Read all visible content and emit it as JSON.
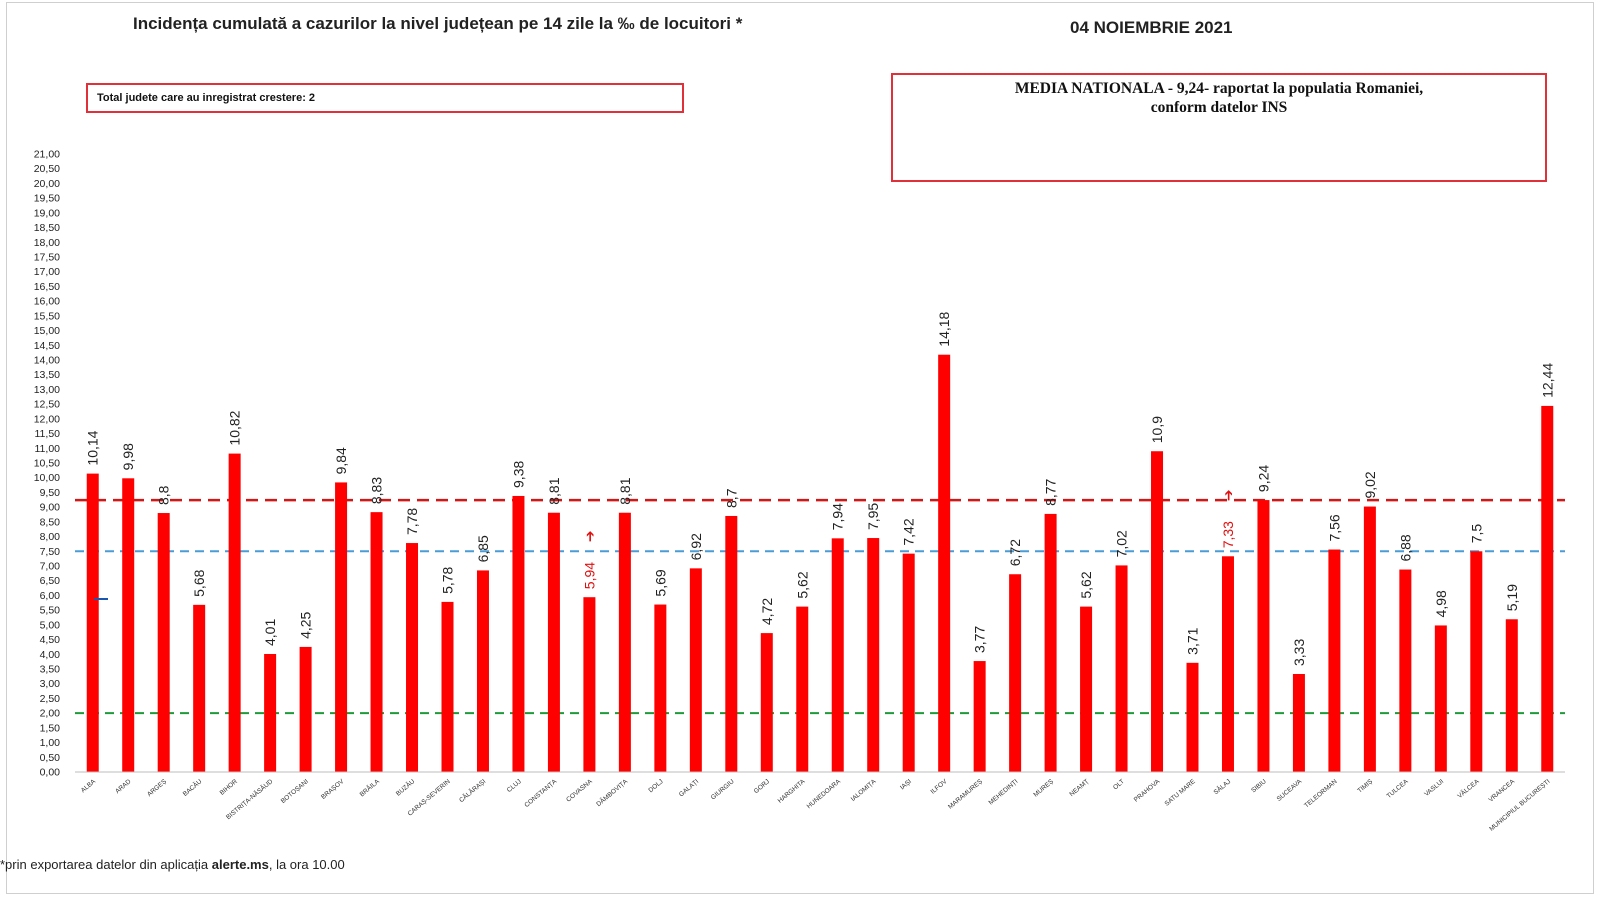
{
  "title": "Incidența cumulată a cazurilor la nivel județean pe 14 zile la ‰ de locuitori *",
  "date": "04 NOIEMBRIE 2021",
  "box_left_text": "Total judete care au inregistrat crestere: 2",
  "box_right_line1": "MEDIA NATIONALA - 9,24-  raportat la populatia Romaniei,",
  "box_right_line2": "conform datelor INS",
  "footnote_prefix": "*prin exportarea datelor din aplicația ",
  "footnote_bold": "alerte.ms",
  "footnote_suffix": ", la ora 10.00",
  "colors": {
    "bar": "#ff0000",
    "ref_red": "#d01818",
    "ref_blue": "#4a9cd6",
    "ref_green": "#1f9a3a",
    "increase_label": "#e01010"
  },
  "chart_data": {
    "type": "bar",
    "ylim": [
      0,
      21
    ],
    "ytick_step": 0.5,
    "decimal_separator": ",",
    "grid": false,
    "reference_lines": [
      {
        "value": 9.24,
        "color": "#d01818",
        "style": "dashed"
      },
      {
        "value": 7.5,
        "color": "#4a9cd6",
        "style": "dashed"
      },
      {
        "value": 2.0,
        "color": "#1f9a3a",
        "style": "dashed"
      }
    ],
    "categories": [
      "ALBA",
      "ARAD",
      "ARGEȘ",
      "BACĂU",
      "BIHOR",
      "BISTRIȚA-NĂSĂUD",
      "BOTOȘANI",
      "BRAȘOV",
      "BRĂILA",
      "BUZĂU",
      "CARAȘ-SEVERIN",
      "CĂLĂRAȘI",
      "CLUJ",
      "CONSTANȚA",
      "COVASNA",
      "DÂMBOVIȚA",
      "DOLJ",
      "GALAȚI",
      "GIURGIU",
      "GORJ",
      "HARGHITA",
      "HUNEDOARA",
      "IALOMIȚA",
      "IAȘI",
      "ILFOV",
      "MARAMUREȘ",
      "MEHEDINȚI",
      "MUREȘ",
      "NEAMȚ",
      "OLT",
      "PRAHOVA",
      "SATU MARE",
      "SĂLAJ",
      "SIBIU",
      "SUCEAVA",
      "TELEORMAN",
      "TIMIȘ",
      "TULCEA",
      "VASLUI",
      "VÂLCEA",
      "VRANCEA",
      "MUNICIPIUL BUCUREȘTI"
    ],
    "values": [
      10.14,
      9.98,
      8.8,
      5.68,
      10.82,
      4.01,
      4.25,
      9.84,
      8.83,
      7.78,
      5.78,
      6.85,
      9.38,
      8.81,
      5.94,
      8.81,
      5.69,
      6.92,
      8.7,
      4.72,
      5.62,
      7.94,
      7.95,
      7.42,
      14.18,
      3.77,
      6.72,
      8.77,
      5.62,
      7.02,
      10.9,
      3.71,
      7.33,
      9.24,
      3.33,
      7.56,
      9.02,
      6.88,
      4.98,
      7.5,
      5.19,
      12.44
    ],
    "labels": [
      "10,14",
      "9,98",
      "8,8",
      "5,68",
      "10,82",
      "4,01",
      "4,25",
      "9,84",
      "8,83",
      "7,78",
      "5,78",
      "6,85",
      "9,38",
      "8,81",
      "5,94",
      "8,81",
      "5,69",
      "6,92",
      "8,7",
      "4,72",
      "5,62",
      "7,94",
      "7,95",
      "7,42",
      "14,18",
      "3,77",
      "6,72",
      "8,77",
      "5,62",
      "7,02",
      "10,9",
      "3,71",
      "7,33",
      "9,24",
      "3,33",
      "7,56",
      "9,02",
      "6,88",
      "4,98",
      "7,5",
      "5,19",
      "12,44"
    ],
    "increased": [
      "COVASNA",
      "SĂLAJ"
    ],
    "increase_marker": "➔"
  }
}
